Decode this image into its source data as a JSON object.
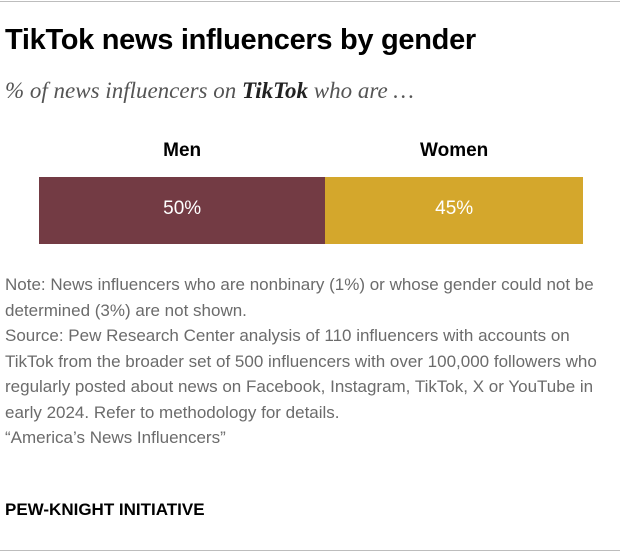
{
  "title": "TikTok news influencers by gender",
  "subtitle": {
    "before": "% of news influencers on ",
    "platform": "TikTok",
    "after": " who are …"
  },
  "chart_data": {
    "type": "bar",
    "stacked": true,
    "orientation": "horizontal",
    "categories": [
      "Men",
      "Women"
    ],
    "values": [
      50,
      45
    ],
    "value_labels": [
      "50%",
      "45%"
    ],
    "colors": [
      "#733b44",
      "#d4a72c"
    ],
    "xlim": [
      0,
      95
    ]
  },
  "notes": {
    "note": "Note: News influencers who are nonbinary (1%) or whose gender could not be determined (3%) are not shown.",
    "source": "Source: Pew Research Center analysis of 110 influencers with accounts on TikTok from the broader set of 500 influencers with over 100,000 followers who regularly posted about news on Facebook, Instagram, TikTok, X or YouTube in early 2024. Refer to methodology for details.",
    "report": "“America’s News Influencers”"
  },
  "footer": "PEW-KNIGHT INITIATIVE"
}
